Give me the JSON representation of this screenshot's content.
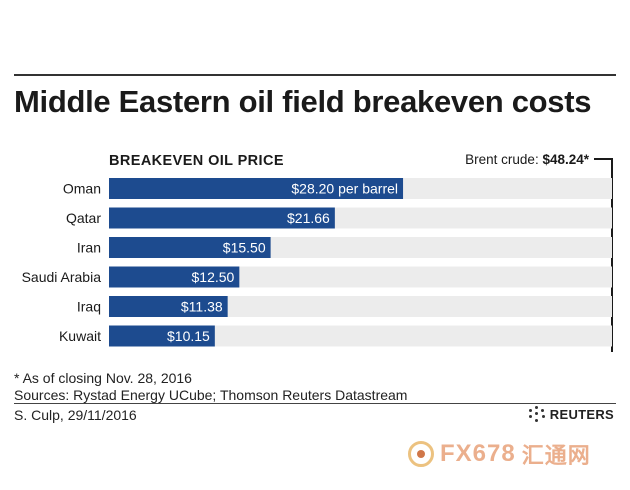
{
  "title": "Middle Eastern oil field breakeven costs",
  "chart_data": {
    "type": "bar",
    "orientation": "horizontal",
    "subtitle": "BREAKEVEN OIL PRICE",
    "categories": [
      "Oman",
      "Qatar",
      "Iran",
      "Saudi Arabia",
      "Iraq",
      "Kuwait"
    ],
    "values": [
      28.2,
      21.66,
      15.5,
      12.5,
      11.38,
      10.15
    ],
    "value_labels": [
      "$28.20 per barrel",
      "$21.66",
      "$15.50",
      "$12.50",
      "$11.38",
      "$10.15"
    ],
    "xlim": [
      0,
      48.24
    ],
    "reference": {
      "label": "Brent crude: ",
      "value_label": "$48.24*",
      "value": 48.24
    },
    "bar_color": "#1d4b8f",
    "track_color": "#ececec"
  },
  "footnotes": {
    "asterisk_note": "* As of closing Nov. 28, 2016",
    "sources": "Sources:  Rystad Energy UCube; Thomson Reuters Datastream"
  },
  "credit": "S. Culp,  29/11/2016",
  "brand": "REUTERS",
  "watermark": {
    "latin": "FX678",
    "chinese": "汇通网"
  }
}
